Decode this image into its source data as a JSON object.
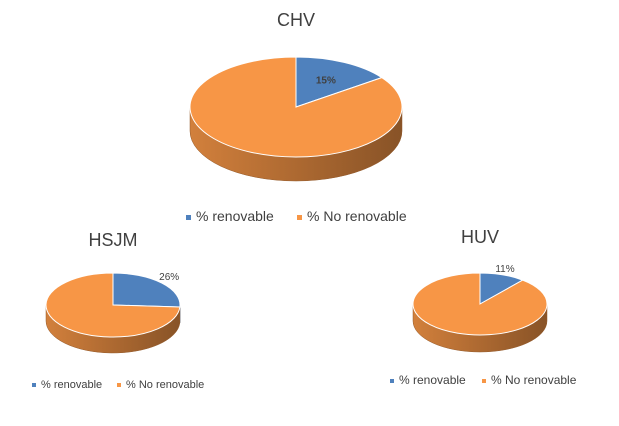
{
  "chart_data": [
    {
      "type": "pie",
      "title": "CHV",
      "categories": [
        "% renovable",
        "% No renovable"
      ],
      "values": [
        15,
        85
      ],
      "data_labels": [
        "15%",
        ""
      ],
      "colors": [
        "#4f81bd",
        "#f79646"
      ],
      "legend": "bottom"
    },
    {
      "type": "pie",
      "title": "HSJM",
      "categories": [
        "% renovable",
        "% No renovable"
      ],
      "values": [
        26,
        74
      ],
      "data_labels": [
        "26%",
        ""
      ],
      "colors": [
        "#4f81bd",
        "#f79646"
      ],
      "legend": "bottom"
    },
    {
      "type": "pie",
      "title": "HUV",
      "categories": [
        "% renovable",
        "% No renovable"
      ],
      "values": [
        11,
        89
      ],
      "data_labels": [
        "11%",
        ""
      ],
      "colors": [
        "#4f81bd",
        "#f79646"
      ],
      "legend": "bottom"
    }
  ]
}
